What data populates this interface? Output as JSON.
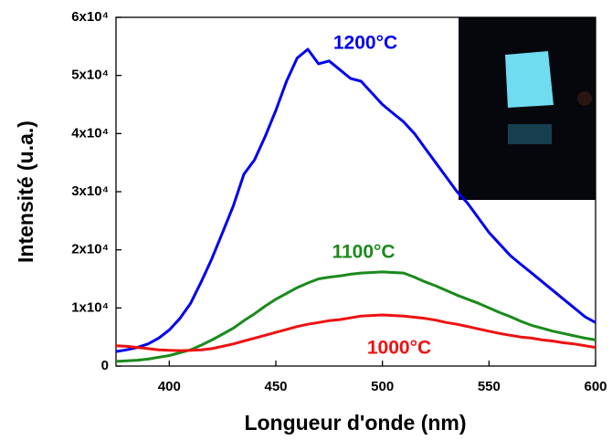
{
  "chart_data": {
    "type": "line",
    "xlabel": "Longueur d'onde (nm)",
    "ylabel": "Intensité (u.a.)",
    "x": [
      375,
      380,
      385,
      390,
      395,
      400,
      405,
      410,
      415,
      420,
      425,
      430,
      435,
      440,
      445,
      450,
      455,
      460,
      465,
      470,
      475,
      480,
      485,
      490,
      495,
      500,
      505,
      510,
      515,
      520,
      525,
      530,
      535,
      540,
      545,
      550,
      555,
      560,
      565,
      570,
      575,
      580,
      585,
      590,
      595,
      600
    ],
    "series": [
      {
        "name": "1200°C",
        "color": "#0000ee",
        "values": [
          2500,
          2800,
          3200,
          3800,
          4800,
          6200,
          8200,
          10800,
          14500,
          18500,
          23000,
          27500,
          33000,
          35500,
          39500,
          44000,
          49000,
          53000,
          54500,
          52000,
          52500,
          51000,
          49500,
          49000,
          47000,
          45000,
          43500,
          42000,
          40000,
          37500,
          35000,
          32500,
          30000,
          28000,
          25500,
          23000,
          21000,
          19000,
          17500,
          16000,
          14500,
          13000,
          11500,
          10000,
          8500,
          7500
        ]
      },
      {
        "name": "1100°C",
        "color": "#1a8a1a",
        "values": [
          800,
          900,
          1000,
          1200,
          1500,
          1800,
          2300,
          2800,
          3600,
          4500,
          5500,
          6500,
          7800,
          9000,
          10300,
          11500,
          12500,
          13500,
          14300,
          15000,
          15300,
          15500,
          15800,
          16000,
          16100,
          16200,
          16100,
          16000,
          15300,
          14500,
          13800,
          13000,
          12200,
          11500,
          10800,
          10000,
          9200,
          8500,
          7700,
          7000,
          6500,
          6000,
          5600,
          5200,
          4800,
          4500
        ]
      },
      {
        "name": "1000°C",
        "color": "#ee1111",
        "values": [
          3500,
          3400,
          3200,
          3000,
          2800,
          2700,
          2650,
          2700,
          2800,
          3000,
          3400,
          3800,
          4300,
          4800,
          5300,
          5800,
          6300,
          6800,
          7200,
          7500,
          7800,
          8000,
          8300,
          8600,
          8700,
          8800,
          8700,
          8600,
          8400,
          8200,
          7900,
          7500,
          7200,
          6800,
          6400,
          6000,
          5600,
          5300,
          5000,
          4800,
          4500,
          4300,
          4000,
          3800,
          3500,
          3200
        ]
      }
    ],
    "xlim": [
      375,
      600
    ],
    "xticks": [
      400,
      450,
      500,
      550,
      600
    ],
    "ylim": [
      0,
      60000
    ],
    "yticks": [
      0,
      {
        "value": 10000,
        "label": "1x10⁴"
      },
      {
        "value": 20000,
        "label": "2x10⁴"
      },
      {
        "value": 30000,
        "label": "3x10⁴"
      },
      {
        "value": 40000,
        "label": "4x10⁴"
      },
      {
        "value": 50000,
        "label": "5x10⁴"
      },
      {
        "value": 60000,
        "label": "6x10⁴"
      }
    ],
    "grid": false
  }
}
